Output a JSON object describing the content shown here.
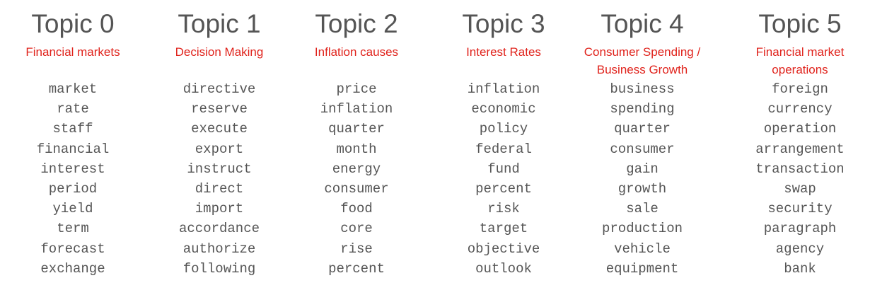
{
  "topics": [
    {
      "title": "Topic 0",
      "subtitle": "Financial markets",
      "words": [
        "market",
        "rate",
        "staff",
        "financial",
        "interest",
        "period",
        "yield",
        "term",
        "forecast",
        "exchange"
      ]
    },
    {
      "title": "Topic 1",
      "subtitle": "Decision Making",
      "words": [
        "directive",
        "reserve",
        "execute",
        "export",
        "instruct",
        "direct",
        "import",
        "accordance",
        "authorize",
        "following"
      ]
    },
    {
      "title": "Topic 2",
      "subtitle": "Inflation causes",
      "words": [
        "price",
        "inflation",
        "quarter",
        "month",
        "energy",
        "consumer",
        "food",
        "core",
        "rise",
        "percent"
      ]
    },
    {
      "title": "Topic 3",
      "subtitle": "Interest Rates",
      "words": [
        "inflation",
        "economic",
        "policy",
        "federal",
        "fund",
        "percent",
        "risk",
        "target",
        "objective",
        "outlook"
      ]
    },
    {
      "title": "Topic 4",
      "subtitle": "Consumer Spending / Business Growth",
      "words": [
        "business",
        "spending",
        "quarter",
        "consumer",
        "gain",
        "growth",
        "sale",
        "production",
        "vehicle",
        "equipment"
      ]
    },
    {
      "title": "Topic 5",
      "subtitle": "Financial market operations",
      "words": [
        "foreign",
        "currency",
        "operation",
        "arrangement",
        "transaction",
        "swap",
        "security",
        "paragraph",
        "agency",
        "bank"
      ]
    }
  ],
  "colors": {
    "title": "#555555",
    "subtitle": "#e0231c",
    "word": "#555555"
  }
}
